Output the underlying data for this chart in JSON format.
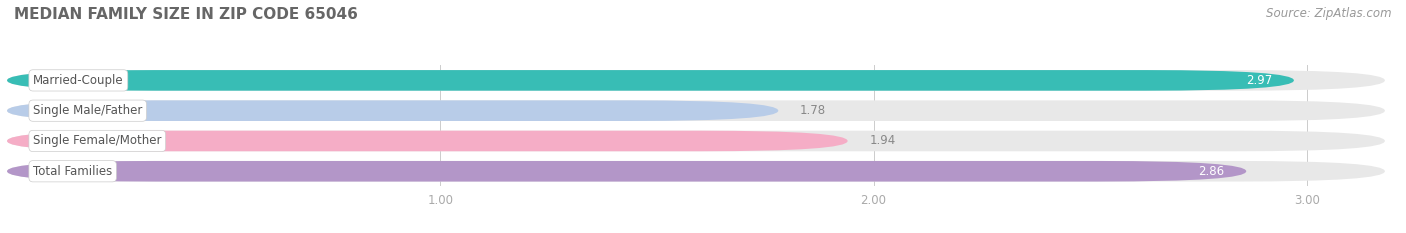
{
  "title": "MEDIAN FAMILY SIZE IN ZIP CODE 65046",
  "source": "Source: ZipAtlas.com",
  "categories": [
    "Married-Couple",
    "Single Male/Father",
    "Single Female/Mother",
    "Total Families"
  ],
  "values": [
    2.97,
    1.78,
    1.94,
    2.86
  ],
  "bar_colors": [
    "#38bdb5",
    "#b8cce8",
    "#f5adc6",
    "#b396c8"
  ],
  "bar_bg_color": "#e8e8e8",
  "value_label_colors": [
    "#ffffff",
    "#888888",
    "#888888",
    "#ffffff"
  ],
  "value_label_inside": [
    true,
    false,
    false,
    true
  ],
  "xlim_min": 0.0,
  "xlim_max": 3.18,
  "xticks": [
    1.0,
    2.0,
    3.0
  ],
  "xtick_labels": [
    "1.00",
    "2.00",
    "3.00"
  ],
  "background_color": "#ffffff",
  "title_fontsize": 11,
  "label_fontsize": 8.5,
  "value_fontsize": 8.5,
  "source_fontsize": 8.5,
  "bar_height": 0.68,
  "bar_gap": 0.32
}
